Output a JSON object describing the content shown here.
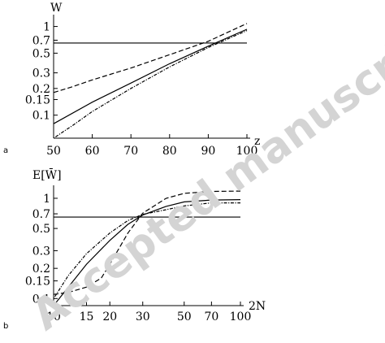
{
  "watermark": "Accepted manuscript",
  "chart_data": [
    {
      "type": "line",
      "panel_label": "a",
      "ylabel": "W",
      "xlabel": "z",
      "scale": "log-y",
      "xlim": [
        50,
        100
      ],
      "ylim": [
        0.055,
        1.25
      ],
      "x_ticks": [
        "50",
        "60",
        "70",
        "80",
        "90",
        "100"
      ],
      "y_ticks": [
        "1",
        "0.7",
        "0.5",
        "0.3",
        "0.2",
        "0.15",
        "0.1"
      ],
      "reference_line": 0.65,
      "series": [
        {
          "style": "solid",
          "x": [
            50,
            60,
            70,
            80,
            90,
            100
          ],
          "y": [
            0.08,
            0.14,
            0.23,
            0.38,
            0.6,
            0.93
          ]
        },
        {
          "style": "dashed",
          "x": [
            50,
            55,
            60,
            70,
            80,
            90,
            100
          ],
          "y": [
            0.18,
            0.21,
            0.25,
            0.34,
            0.48,
            0.68,
            1.08
          ]
        },
        {
          "style": "dotdash",
          "x": [
            50,
            55,
            60,
            70,
            80,
            90,
            100
          ],
          "y": [
            0.055,
            0.077,
            0.11,
            0.2,
            0.35,
            0.58,
            0.9
          ]
        }
      ]
    },
    {
      "type": "line",
      "panel_label": "b",
      "ylabel": "E[W̄]",
      "xlabel": "2N",
      "scale": "log-log",
      "xlim": [
        10,
        100
      ],
      "ylim": [
        0.085,
        1.25
      ],
      "x_ticks": [
        10,
        15,
        20,
        30,
        50,
        70,
        100
      ],
      "y_ticks": [
        "1",
        "0.7",
        "0.5",
        "0.3",
        "0.2",
        "0.15",
        "0.1"
      ],
      "reference_line": 0.65,
      "series": [
        {
          "style": "solid",
          "x": [
            10,
            15,
            20,
            25,
            30,
            40,
            50,
            70,
            100
          ],
          "y": [
            0.085,
            0.22,
            0.38,
            0.55,
            0.68,
            0.83,
            0.92,
            0.96,
            0.97
          ]
        },
        {
          "style": "dashed",
          "x": [
            10,
            12,
            15,
            18,
            20,
            25,
            30,
            40,
            50,
            70,
            100
          ],
          "y": [
            0.11,
            0.115,
            0.13,
            0.16,
            0.22,
            0.45,
            0.71,
            1.0,
            1.12,
            1.17,
            1.18
          ]
        },
        {
          "style": "dotdash",
          "x": [
            10,
            12,
            15,
            20,
            25,
            30,
            40,
            50,
            70,
            100
          ],
          "y": [
            0.1,
            0.17,
            0.28,
            0.45,
            0.6,
            0.69,
            0.77,
            0.84,
            0.9,
            0.9
          ]
        }
      ]
    }
  ]
}
